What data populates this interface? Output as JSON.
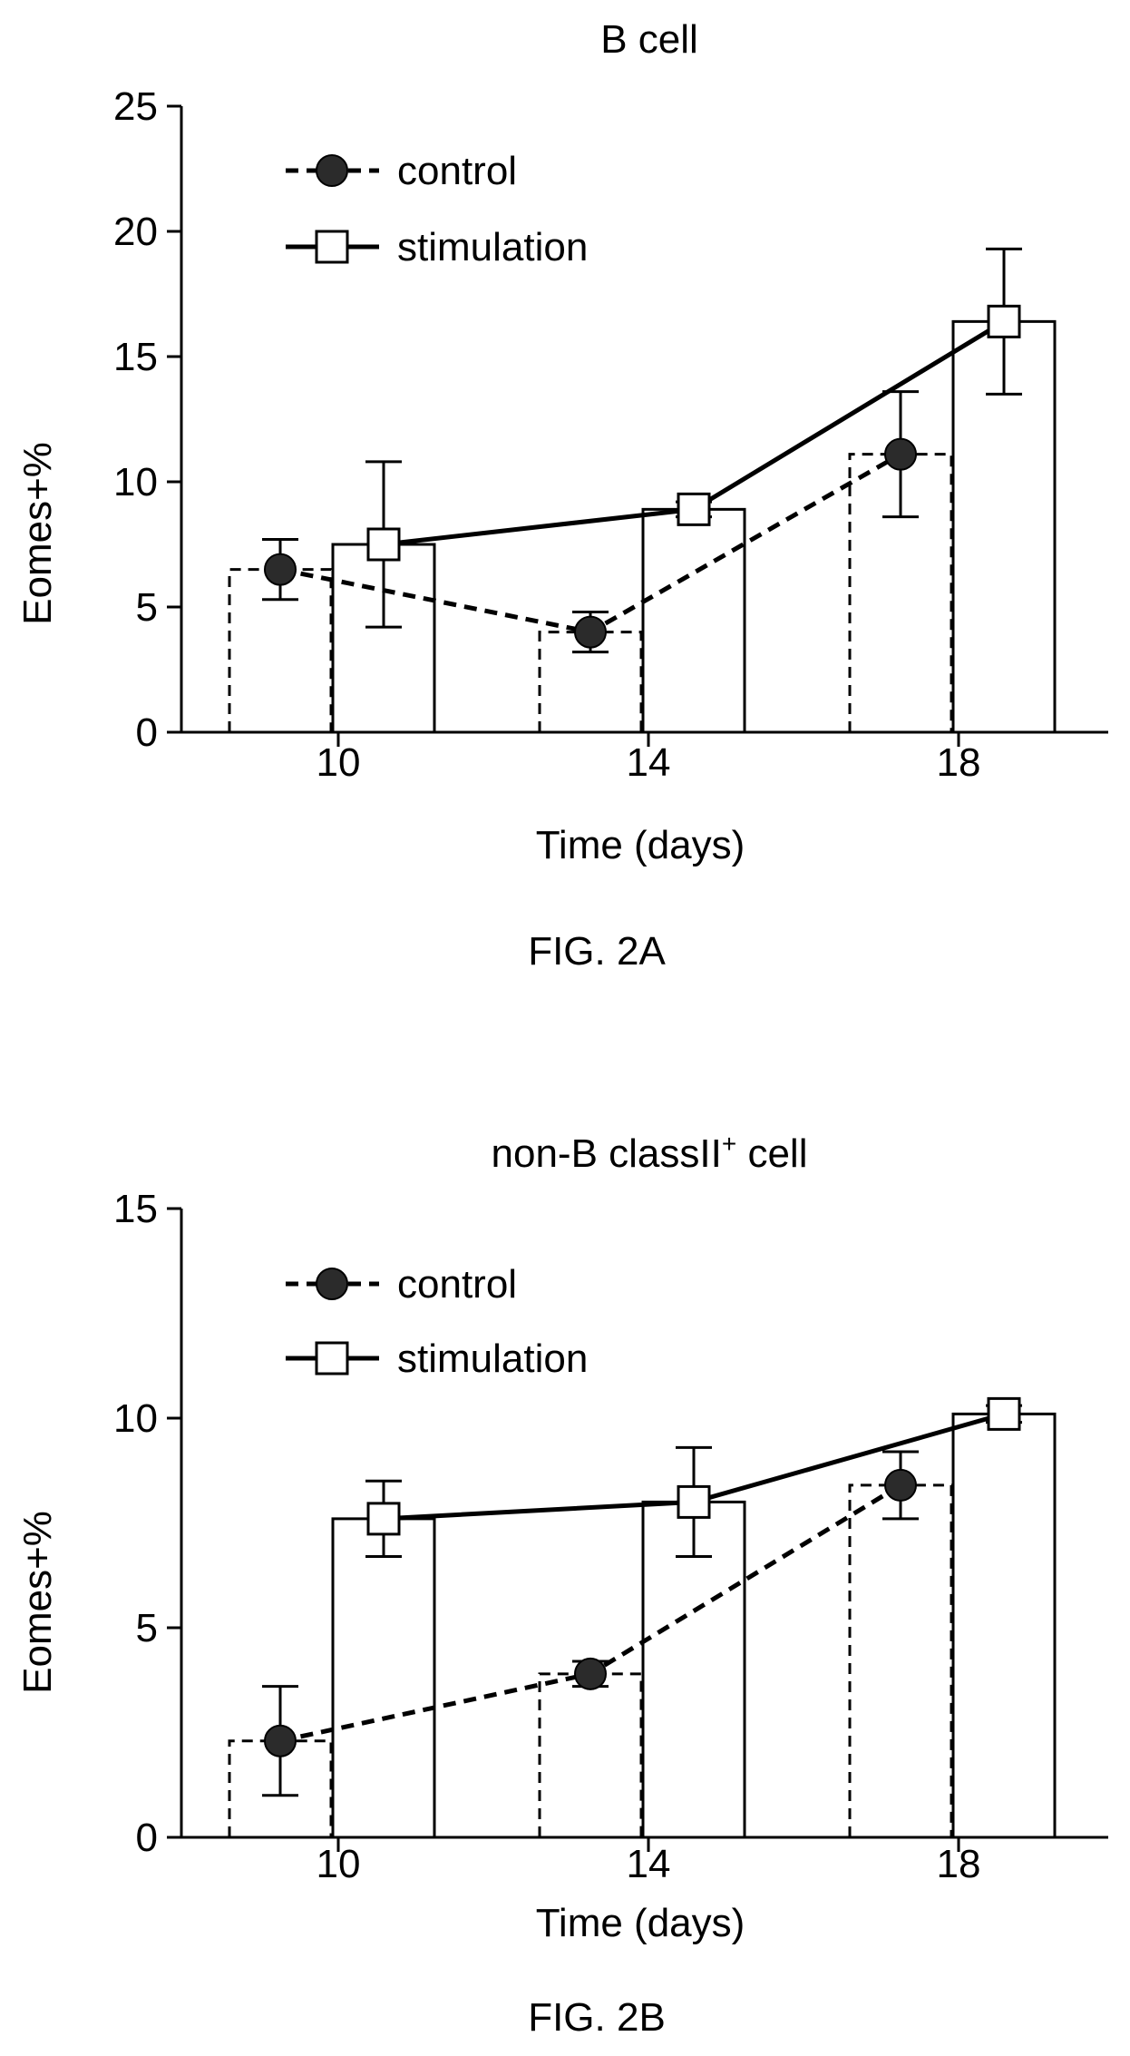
{
  "chart_data": [
    {
      "type": "bar",
      "figure_label": "FIG. 2A",
      "title": "B cell",
      "xlabel": "Time (days)",
      "ylabel": "Eomes+%",
      "categories": [
        "10",
        "14",
        "18"
      ],
      "ylim": [
        0,
        25
      ],
      "yticks": [
        "0",
        "5",
        "10",
        "15",
        "20",
        "25"
      ],
      "grid": false,
      "legend_position": "top-left",
      "series": [
        {
          "name": "control",
          "style": "dashed-circle-filled",
          "values": [
            6.5,
            4.0,
            11.1
          ],
          "errors": [
            1.2,
            0.8,
            2.5
          ]
        },
        {
          "name": "stimulation",
          "style": "solid-square-open",
          "values": [
            7.5,
            8.9,
            16.4
          ],
          "errors": [
            3.3,
            0.3,
            2.9
          ]
        }
      ]
    },
    {
      "type": "bar",
      "figure_label": "FIG. 2B",
      "title": "non-B classII",
      "title_superscript": "+",
      "title_suffix": " cell",
      "xlabel": "Time (days)",
      "ylabel": "Eomes+%",
      "categories": [
        "10",
        "14",
        "18"
      ],
      "ylim": [
        0,
        15
      ],
      "yticks": [
        "0",
        "5",
        "10",
        "15"
      ],
      "grid": false,
      "legend_position": "top-left",
      "series": [
        {
          "name": "control",
          "style": "dashed-circle-filled",
          "values": [
            2.3,
            3.9,
            8.4
          ],
          "errors": [
            1.3,
            0.3,
            0.8
          ]
        },
        {
          "name": "stimulation",
          "style": "solid-square-open",
          "values": [
            7.6,
            8.0,
            10.1
          ],
          "errors": [
            0.9,
            1.3,
            0.2
          ]
        }
      ]
    }
  ]
}
